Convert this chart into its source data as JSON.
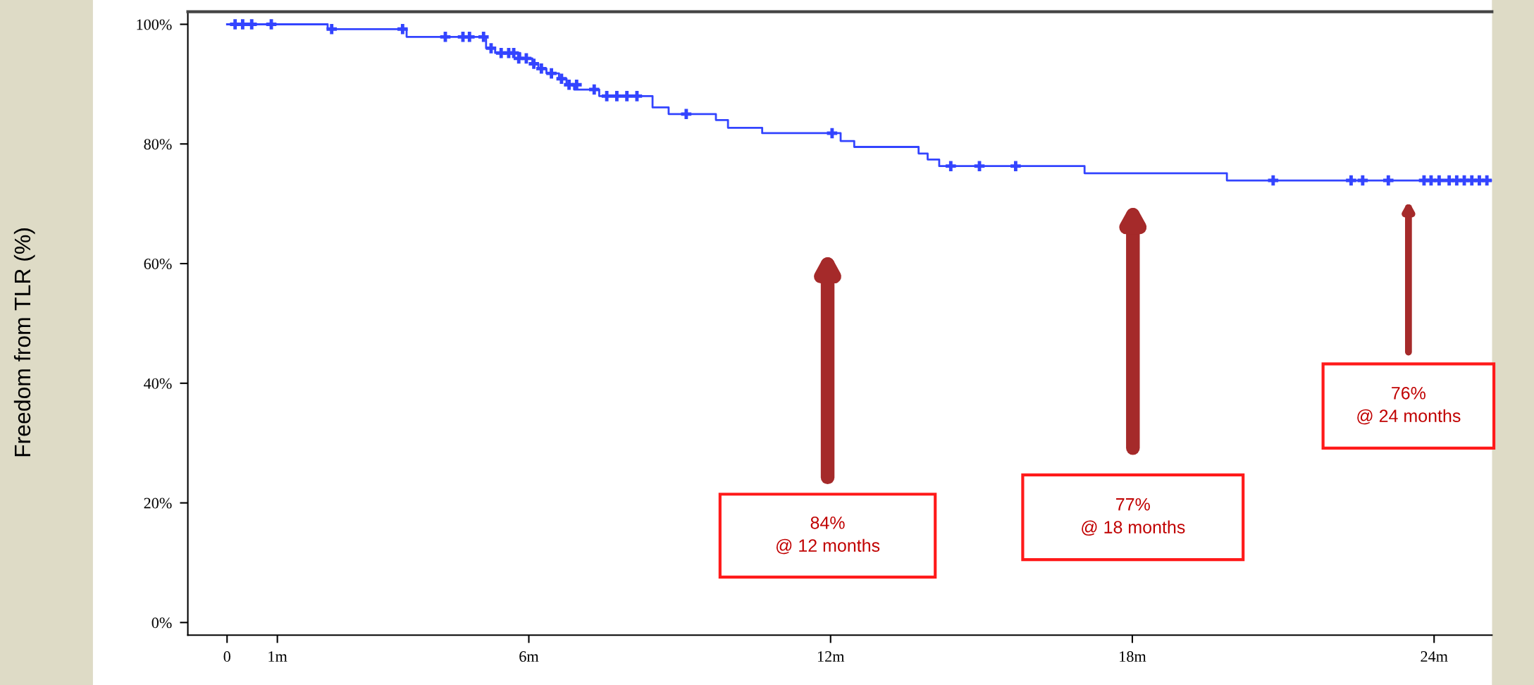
{
  "chart_data": {
    "type": "step",
    "ylabel": "Freedom from TLR (%)",
    "xlim": [
      -0.78,
      25.15
    ],
    "xticks": [
      {
        "value": 0,
        "label": "0"
      },
      {
        "value": 1,
        "label": "1m"
      },
      {
        "value": 6,
        "label": "6m"
      },
      {
        "value": 12,
        "label": "12m"
      },
      {
        "value": 18,
        "label": "18m"
      },
      {
        "value": 24,
        "label": "24m"
      }
    ],
    "ylim": [
      -2.1,
      102.1
    ],
    "yticks": [
      {
        "value": 0,
        "label": "0%"
      },
      {
        "value": 20,
        "label": "20%"
      },
      {
        "value": 40,
        "label": "40%"
      },
      {
        "value": 60,
        "label": "60%"
      },
      {
        "value": 80,
        "label": "80%"
      },
      {
        "value": 100,
        "label": "100%"
      }
    ],
    "grid": false,
    "legend": false,
    "series": [
      {
        "color": "#3344ff",
        "marker": "none",
        "line_style": "solid",
        "x": [
          0,
          2.0,
          3.57,
          5.15,
          5.33,
          5.83,
          6.07,
          6.19,
          6.35,
          6.6,
          6.75,
          6.9,
          7.4,
          8.46,
          8.78,
          9.72,
          9.96,
          10.64,
          12.2,
          12.47,
          13.75,
          13.93,
          14.16,
          17.05,
          19.88,
          25.15
        ],
        "values": [
          100,
          99.2,
          97.9,
          96.0,
          95.2,
          94.3,
          93.4,
          92.6,
          91.8,
          90.9,
          89.9,
          89.1,
          88.0,
          86.1,
          85.0,
          84.0,
          82.7,
          81.8,
          80.5,
          79.5,
          78.4,
          77.4,
          76.3,
          75.1,
          73.9,
          73.9
        ]
      },
      {
        "type": "scatter",
        "color": "#3344ff",
        "marker": "cross",
        "x": [
          0.16,
          0.31,
          0.49,
          0.88,
          2.08,
          3.49,
          4.34,
          4.69,
          4.82,
          5.1,
          5.25,
          5.45,
          5.6,
          5.7,
          5.8,
          5.95,
          6.1,
          6.25,
          6.45,
          6.65,
          6.8,
          6.95,
          7.3,
          7.55,
          7.75,
          7.95,
          8.15,
          9.13,
          12.03,
          14.39,
          14.96,
          15.68,
          20.8,
          22.35,
          22.58,
          23.09,
          23.8,
          23.94,
          24.1,
          24.3,
          24.45,
          24.6,
          24.75,
          24.9,
          25.05
        ],
        "values": [
          100,
          100,
          100,
          100,
          99.2,
          99.2,
          97.9,
          97.9,
          97.9,
          97.9,
          96.0,
          95.2,
          95.2,
          95.2,
          94.3,
          94.3,
          93.4,
          92.6,
          91.8,
          90.9,
          89.9,
          89.9,
          89.1,
          88.0,
          88.0,
          88.0,
          88.0,
          85.0,
          81.8,
          76.3,
          76.3,
          76.3,
          73.9,
          73.9,
          73.9,
          73.9,
          73.9,
          73.9,
          73.9,
          73.9,
          73.9,
          73.9,
          73.9,
          73.9,
          73.9
        ]
      }
    ],
    "annotations": [
      "84%\n@ 12 months",
      "77%\n@ 18 months",
      "76%\n@ 24 months"
    ]
  }
}
